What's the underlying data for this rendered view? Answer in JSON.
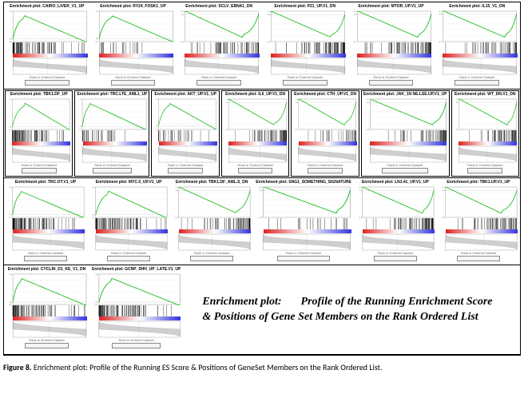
{
  "figure_caption_prefix": "Figure 8.",
  "figure_caption_text": "Enrichment plot: Profile of the Running ES Score & Positions of GeneSet Members on the Rank Ordered List.",
  "overlay_caption_a": "Enrichment plot:",
  "overlay_caption_b": "Profile of the Running Enrichment Score & Positions of Gene Set Members on the Rank Ordered List",
  "x_axis_label": "Rank in Ordered Dataset",
  "es_curve_color": "#1fbf1f",
  "rug_tick_color": "#000000",
  "rank_fill_color": "#cfcfcf",
  "zero_line_color": "#808080",
  "axis_stroke": "#555555",
  "rows": [
    [
      {
        "title": "Enrichment plot: CAIRO_LIVER_V1_UP",
        "ylim": [
          -0.05,
          0.5
        ],
        "dir": "up",
        "n_ticks": 78,
        "seed": 11
      },
      {
        "title": "Enrichment plot: RY24_FOSK1_UP",
        "ylim": [
          -0.05,
          0.45
        ],
        "dir": "up",
        "n_ticks": 22,
        "seed": 12
      },
      {
        "title": "Enrichment plot: SCLV_EBNA1_DN",
        "ylim": [
          -0.45,
          0.05
        ],
        "dir": "down",
        "n_ticks": 60,
        "seed": 13
      },
      {
        "title": "Enrichment plot: P21_UP.V1_DN",
        "ylim": [
          -0.4,
          0.05
        ],
        "dir": "down",
        "n_ticks": 75,
        "seed": 14
      },
      {
        "title": "Enrichment plot: MTOR_UP.V1_UP",
        "ylim": [
          -0.45,
          0.05
        ],
        "dir": "down",
        "n_ticks": 72,
        "seed": 15
      },
      {
        "title": "Enrichment plot: IL15_V1_DN",
        "ylim": [
          -0.5,
          0.05
        ],
        "dir": "down",
        "n_ticks": 48,
        "seed": 16
      }
    ],
    [
      {
        "title": "Enrichment plot: TBK1.DF_UP",
        "ylim": [
          -0.05,
          0.5
        ],
        "dir": "up",
        "n_ticks": 82,
        "seed": 21
      },
      {
        "title": "Enrichment plot: TRC.LTE_AML1_UP",
        "ylim": [
          -0.05,
          0.45
        ],
        "dir": "up",
        "n_ticks": 34,
        "seed": 22
      },
      {
        "title": "Enrichment plot: AKT_UP.V1_UP",
        "ylim": [
          -0.05,
          0.4
        ],
        "dir": "up",
        "n_ticks": 30,
        "seed": 23
      },
      {
        "title": "Enrichment plot: IL6_UP.V1_DN",
        "ylim": [
          -0.4,
          0.05
        ],
        "dir": "down",
        "n_ticks": 66,
        "seed": 24
      },
      {
        "title": "Enrichment plot: CTH_UP.V1_DN",
        "ylim": [
          -0.45,
          0.05
        ],
        "dir": "down",
        "n_ticks": 30,
        "seed": 25
      },
      {
        "title": "Enrichment plot: JAK_1N NE.LSE.UP.V1_UP",
        "ylim": [
          -0.4,
          0.05
        ],
        "dir": "down",
        "n_ticks": 50,
        "seed": 26
      },
      {
        "title": "Enrichment plot: WT_DN.V1_DN",
        "ylim": [
          -0.45,
          0.05
        ],
        "dir": "down",
        "n_ticks": 58,
        "seed": 27
      }
    ],
    [
      {
        "title": "Enrichment plot: TRC.OT.V1_UP",
        "ylim": [
          -0.05,
          0.45
        ],
        "dir": "up",
        "n_ticks": 88,
        "seed": 31
      },
      {
        "title": "Enrichment plot: MYC.5_UP.V1_UP",
        "ylim": [
          -0.05,
          0.5
        ],
        "dir": "up",
        "n_ticks": 86,
        "seed": 32
      },
      {
        "title": "Enrichment plot: TBK1.DF_AML.S_DN",
        "ylim": [
          -0.4,
          0.05
        ],
        "dir": "down",
        "n_ticks": 64,
        "seed": 33
      },
      {
        "title": "Enrichment plot: SNG1_SOMETHING_SIGNATURE",
        "ylim": [
          -0.45,
          0.05
        ],
        "dir": "down",
        "n_ticks": 20,
        "seed": 34
      },
      {
        "title": "Enrichment plot: LN1.41_UP.V1_UP",
        "ylim": [
          -0.4,
          0.05
        ],
        "dir": "down",
        "n_ticks": 70,
        "seed": 35
      },
      {
        "title": "Enrichment plot: TBK1.UP.V1_UP",
        "ylim": [
          -0.4,
          0.05
        ],
        "dir": "down",
        "n_ticks": 56,
        "seed": 36
      }
    ],
    [
      {
        "title": "Enrichment plot: CYCLIN_D1_KE_V1_DN",
        "ylim": [
          -0.05,
          0.55
        ],
        "dir": "up",
        "n_ticks": 80,
        "seed": 41
      },
      {
        "title": "Enrichment plot: GCNP_SHH_UP_LATE.V1_UP",
        "ylim": [
          -0.05,
          0.55
        ],
        "dir": "up",
        "n_ticks": 84,
        "seed": 42
      }
    ]
  ]
}
